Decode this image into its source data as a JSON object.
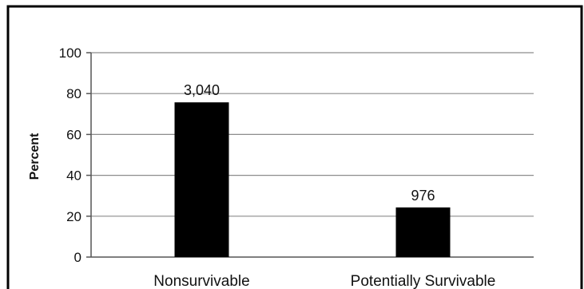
{
  "chart_data": {
    "type": "bar",
    "categories": [
      "Nonsurvivable",
      "Potentially Survivable"
    ],
    "values": [
      75.7,
      24.3
    ],
    "data_labels": [
      "3,040",
      "976"
    ],
    "title": "",
    "xlabel": "",
    "ylabel": "Percent",
    "ylim": [
      0,
      100
    ],
    "yticks": [
      "0",
      "20",
      "40",
      "60",
      "80",
      "100"
    ],
    "grid": true,
    "legend": "none",
    "colors": {
      "bar": "#000000",
      "grid": "#8c8c8c",
      "frame": "#000000"
    }
  }
}
